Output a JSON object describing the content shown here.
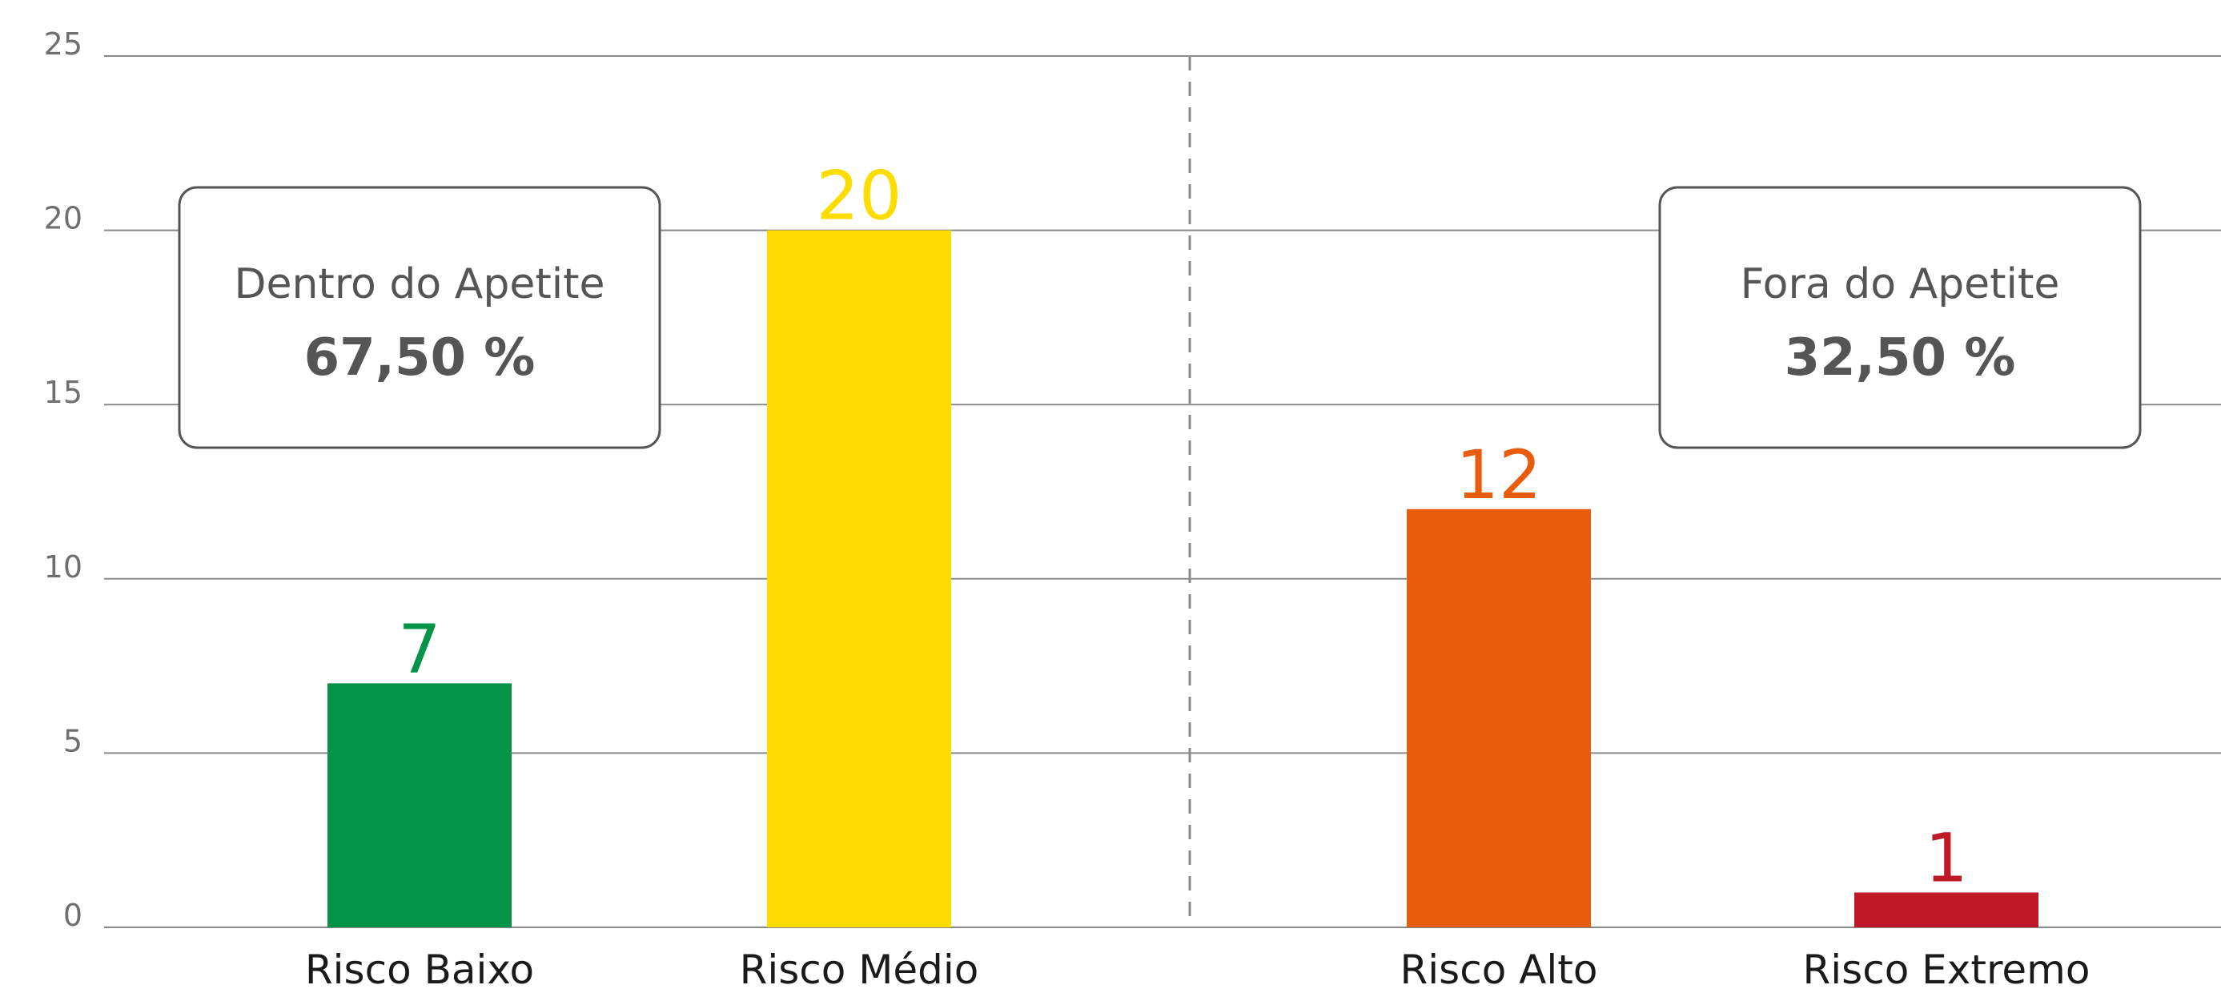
{
  "chart_data": {
    "type": "bar",
    "categories": [
      "Risco Baixo",
      "Risco Médio",
      "Risco Alto",
      "Risco Extremo"
    ],
    "values": [
      7,
      20,
      12,
      1
    ],
    "value_labels": [
      "7",
      "20",
      "12",
      "1"
    ],
    "colors": [
      "#039447",
      "#fddd00",
      "#e85d0d",
      "#c01826"
    ],
    "ylim": [
      0,
      25
    ],
    "yticks": [
      0,
      5,
      10,
      15,
      20,
      25
    ],
    "ytick_labels": [
      "0",
      "5",
      "10",
      "15",
      "20",
      "25"
    ],
    "grid": true,
    "title": "",
    "xlabel": "",
    "ylabel": "",
    "annotations": [
      {
        "title": "Dentro do Apetite",
        "value": "67,50 %"
      },
      {
        "title": "Fora do Apetite",
        "value": "32,50 %"
      }
    ]
  }
}
